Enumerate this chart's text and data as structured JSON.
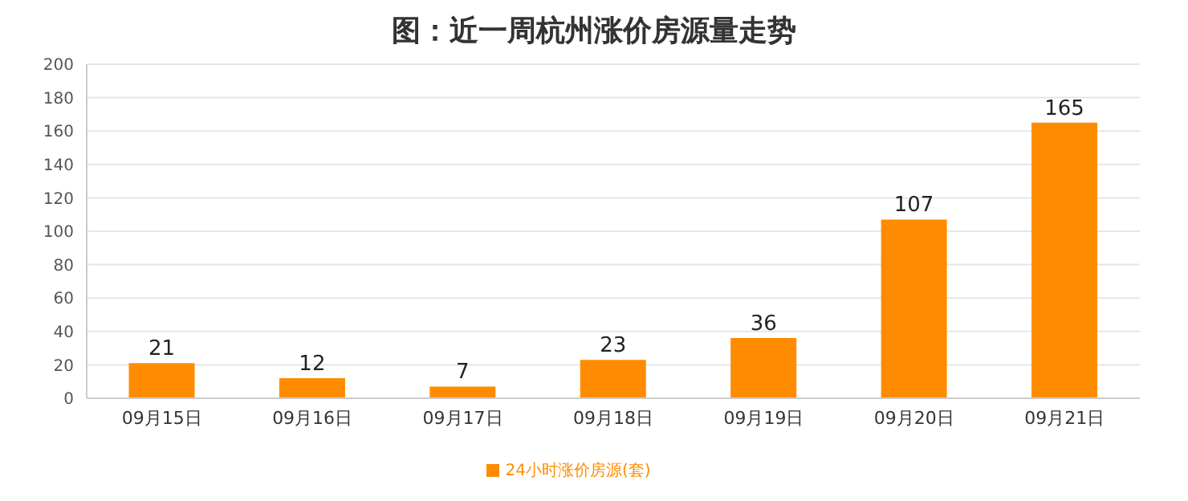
{
  "chart_data": {
    "type": "bar",
    "title": "图：近一周杭州涨价房源量走势",
    "categories": [
      "09月15日",
      "09月16日",
      "09月17日",
      "09月18日",
      "09月19日",
      "09月20日",
      "09月21日"
    ],
    "series": [
      {
        "name": "24小时涨价房源(套)",
        "color": "#ff8c00",
        "values": [
          21,
          12,
          7,
          23,
          36,
          107,
          165
        ]
      }
    ],
    "ylim": [
      0,
      200
    ],
    "yticks": [
      0,
      20,
      40,
      60,
      80,
      100,
      120,
      140,
      160,
      180,
      200
    ],
    "grid": "y",
    "legend": "bottom",
    "data_labels": true
  }
}
